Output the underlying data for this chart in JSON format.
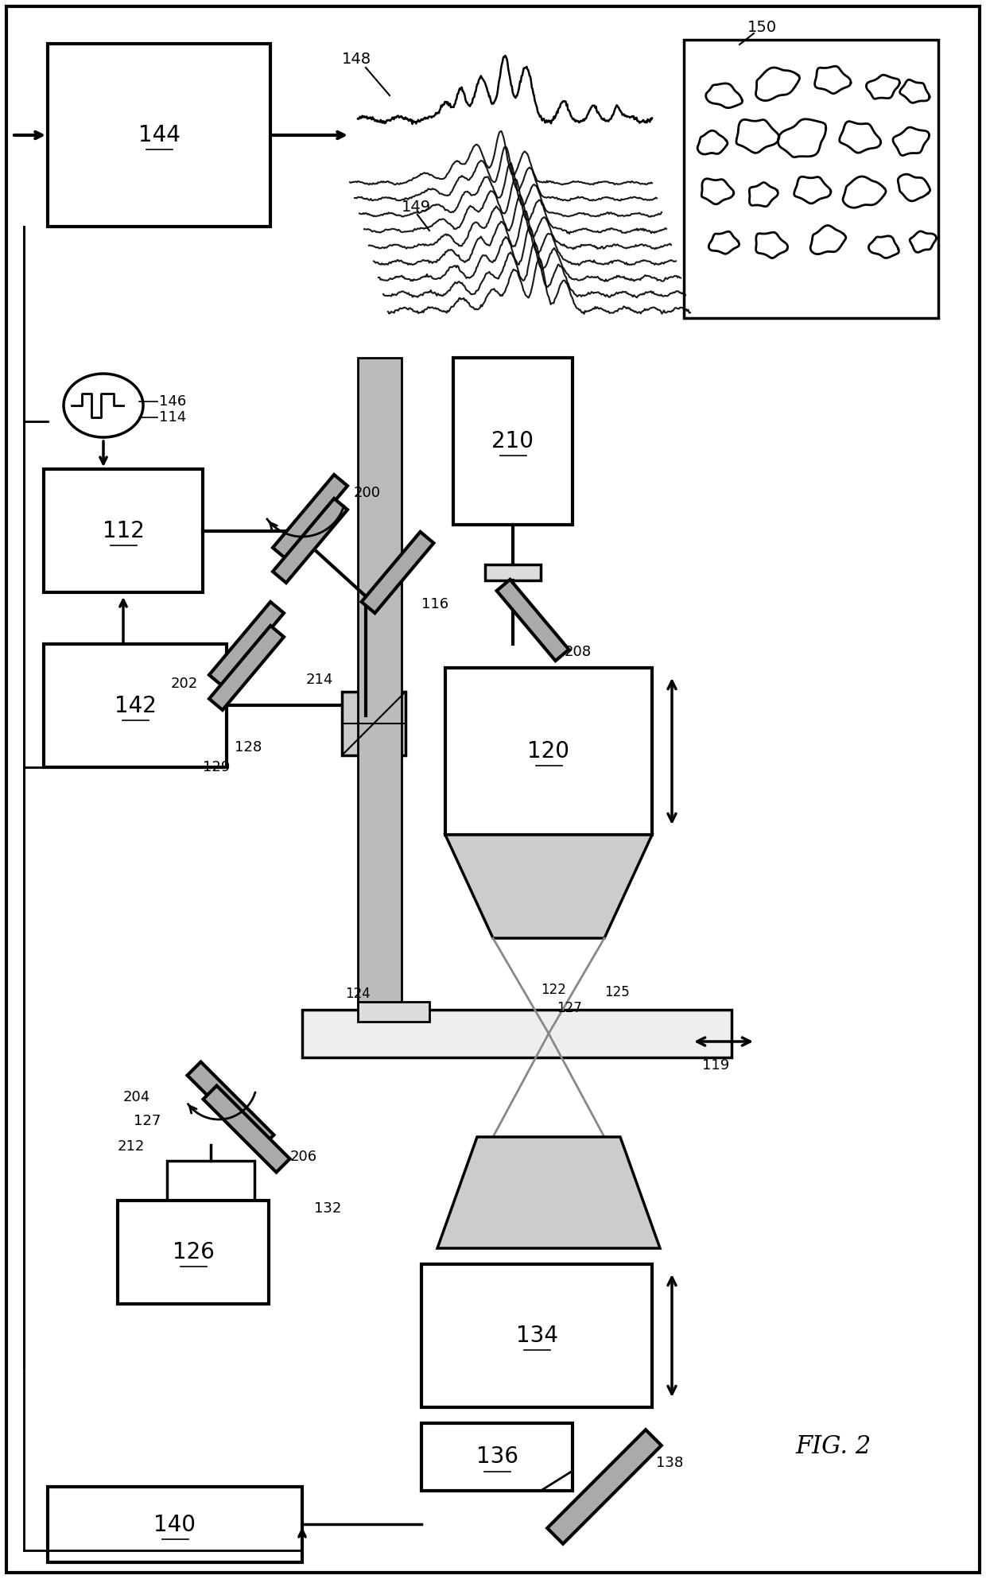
{
  "background_color": "#ffffff",
  "fig_label": "FIG. 2"
}
